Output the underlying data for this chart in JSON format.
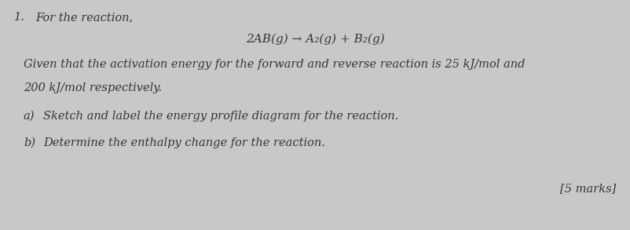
{
  "background_color": "#c8c8c8",
  "question_number": "1.",
  "line1": "For the reaction,",
  "line2": "2AB(g) → A₂(g) + B₂(g)",
  "line3": "Given that the activation energy for the forward and reverse reaction is 25 kJ/mol and",
  "line4": "200 kJ/mol respectively.",
  "line5a": "a)",
  "line5b": "Sketch and label the energy profile diagram for the reaction.",
  "line6a": "b)",
  "line6b": "Determine the enthalpy change for the reaction.",
  "marks": "[5 marks]",
  "font_color": "#3a3530",
  "font_size_header": 10.5,
  "font_size_equation": 11,
  "font_size_body": 10.5,
  "font_size_marks": 10.5
}
